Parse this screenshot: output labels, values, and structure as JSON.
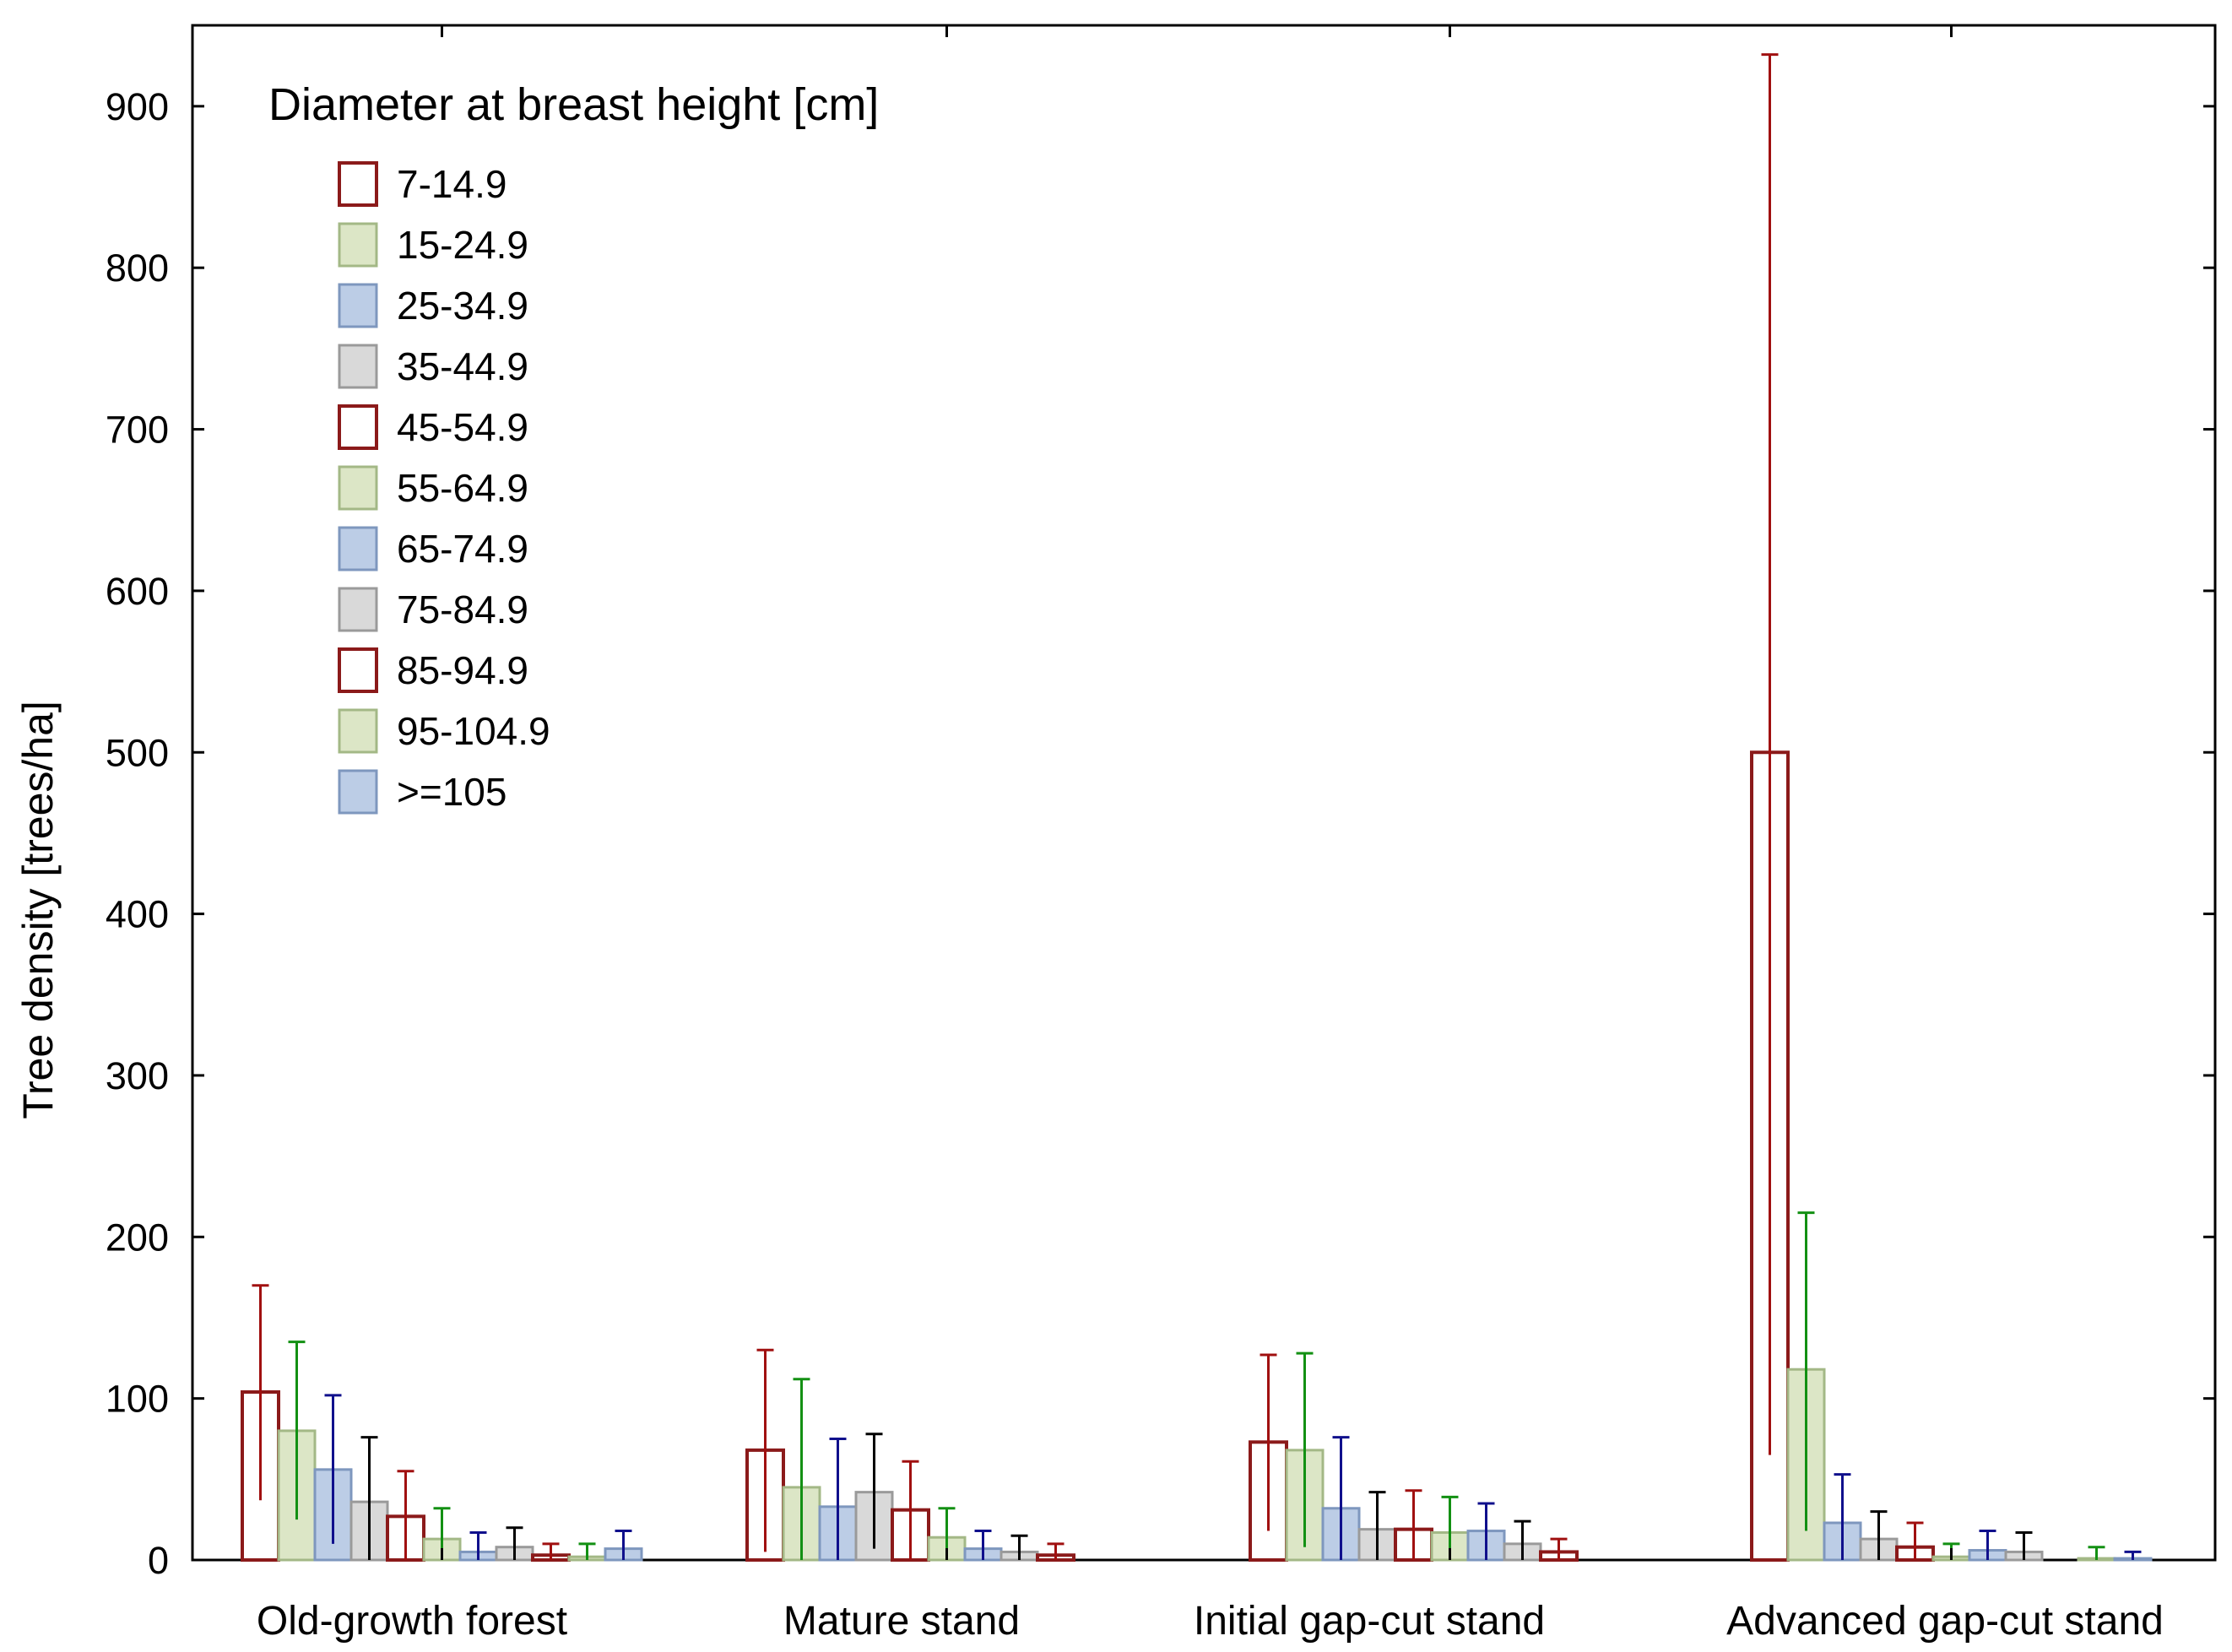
{
  "chart_data": {
    "type": "bar",
    "title": "",
    "xlabel": "",
    "ylabel": "Tree density [trees/ha]",
    "ylim": [
      0,
      950
    ],
    "yticks": [
      0,
      100,
      200,
      300,
      400,
      500,
      600,
      700,
      800,
      900
    ],
    "grid": false,
    "legend_title": "Diameter at breast height [cm]",
    "legend_position": "top-left",
    "categories": [
      "Old-growth forest",
      "Mature stand",
      "Initial gap-cut stand",
      "Advanced gap-cut stand"
    ],
    "colors": {
      "red_edge": "#8B1A1A",
      "red_fill": "#ffffff",
      "red_whisker": "#A01010",
      "green_edge": "#A3B886",
      "green_fill": "#DCE6C6",
      "green_whisker": "#139013",
      "blue_edge": "#7E97BE",
      "blue_fill": "#BCCDE6",
      "blue_whisker": "#10108C",
      "gray_edge": "#9A9A9A",
      "gray_fill": "#D9D9D9",
      "gray_whisker": "#000000"
    },
    "series": [
      {
        "name": "7-14.9",
        "style": "red",
        "values": [
          104,
          68,
          73,
          500
        ],
        "upper": [
          170,
          130,
          127,
          932
        ],
        "lower": [
          37,
          5,
          18,
          65
        ]
      },
      {
        "name": "15-24.9",
        "style": "green",
        "values": [
          80,
          45,
          68,
          118
        ],
        "upper": [
          135,
          112,
          128,
          215
        ],
        "lower": [
          25,
          0,
          8,
          18
        ]
      },
      {
        "name": "25-34.9",
        "style": "blue",
        "values": [
          56,
          33,
          32,
          23
        ],
        "upper": [
          102,
          75,
          76,
          53
        ],
        "lower": [
          10,
          0,
          0,
          0
        ]
      },
      {
        "name": "35-44.9",
        "style": "gray",
        "values": [
          36,
          42,
          19,
          13
        ],
        "upper": [
          76,
          78,
          42,
          30
        ],
        "lower": [
          0,
          7,
          0,
          0
        ]
      },
      {
        "name": "45-54.9",
        "style": "red",
        "values": [
          27,
          31,
          19,
          8
        ],
        "upper": [
          55,
          61,
          43,
          23
        ],
        "lower": [
          0,
          0,
          0,
          0
        ]
      },
      {
        "name": "55-64.9",
        "style": "green",
        "values": [
          13,
          14,
          17,
          2
        ],
        "upper": [
          32,
          32,
          39,
          10
        ],
        "lower": [
          0,
          0,
          0,
          0
        ]
      },
      {
        "name": "65-74.9",
        "style": "blue",
        "values": [
          5,
          7,
          18,
          6
        ],
        "upper": [
          17,
          18,
          35,
          18
        ],
        "lower": [
          0,
          0,
          0,
          0
        ]
      },
      {
        "name": "75-84.9",
        "style": "gray",
        "values": [
          8,
          5,
          10,
          5
        ],
        "upper": [
          20,
          15,
          24,
          17
        ],
        "lower": [
          0,
          0,
          0,
          0
        ]
      },
      {
        "name": "85-94.9",
        "style": "red",
        "values": [
          3,
          3,
          5,
          0
        ],
        "upper": [
          10,
          10,
          13,
          0
        ],
        "lower": [
          0,
          0,
          0,
          0
        ]
      },
      {
        "name": "95-104.9",
        "style": "green",
        "values": [
          2,
          0,
          0,
          1
        ],
        "upper": [
          10,
          0,
          0,
          8
        ],
        "lower": [
          0,
          0,
          0,
          0
        ]
      },
      {
        "name": ">=105",
        "style": "blue",
        "values": [
          7,
          0,
          0,
          1
        ],
        "upper": [
          18,
          0,
          0,
          5
        ],
        "lower": [
          0,
          0,
          0,
          0
        ]
      }
    ]
  }
}
